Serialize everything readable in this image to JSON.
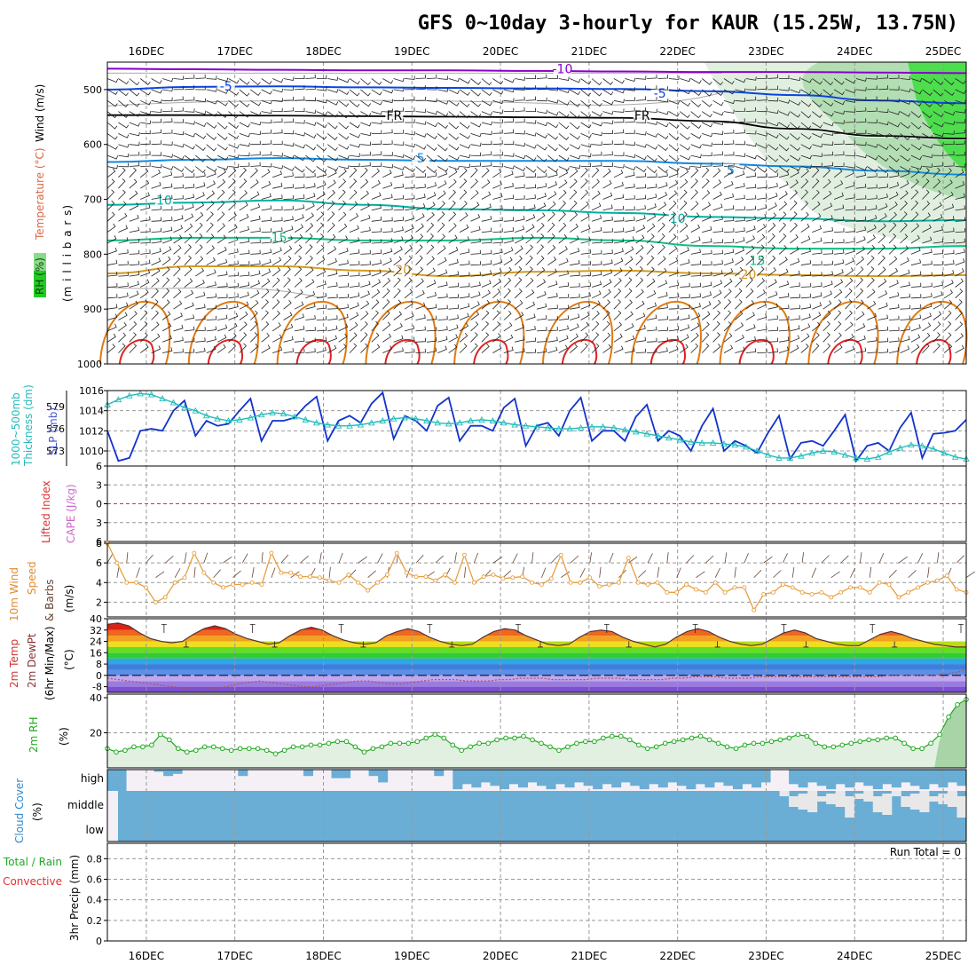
{
  "title": "GFS 0~10day 3-hourly for KAUR (15.25W, 13.75N)",
  "run_total_label": "Run Total = 0",
  "date_labels": [
    "16DEC",
    "17DEC",
    "18DEC",
    "19DEC",
    "20DEC",
    "21DEC",
    "22DEC",
    "23DEC",
    "24DEC",
    "25DEC"
  ],
  "colors": {
    "temp_cold": "#8800cc",
    "temp_5": "#0a44dd",
    "temp_fr": "#000000",
    "temp_m5": "#1188dd",
    "temp_10": "#00b0a0",
    "temp_15": "#11bb88",
    "temp_20": "#d49a20",
    "temp_25": "#e07a10",
    "temp_30": "#dd2222",
    "rh_light": "#dcecdc",
    "rh_mid": "#a8d8a8",
    "rh_dark": "#22dd22",
    "slp": "#1133cc",
    "thickness": "#22bbbb",
    "wind_speed": "#e8a040",
    "rh2m": "#22aa22",
    "cloud": "#6aaed6",
    "cloud_bg": "#f4f0f6"
  },
  "chart_data": [
    {
      "name": "upper",
      "type": "contour",
      "ylabel_parts": [
        "RH (%)",
        "Temperature (°C)",
        "Wind (m/s)"
      ],
      "ylabel2": "(m i l l i b a r s)",
      "y_ticks": [
        "500",
        "600",
        "700",
        "800",
        "900",
        "1000"
      ],
      "ylim": [
        450,
        1000
      ],
      "contours": [
        {
          "label": "-10",
          "color_key": "temp_cold",
          "levels": [
            462,
            463,
            464,
            465,
            465,
            466,
            467,
            468,
            468,
            469,
            470
          ]
        },
        {
          "label": "-5",
          "color_key": "temp_5",
          "levels": [
            500,
            495,
            494,
            496,
            497,
            498,
            499,
            503,
            510,
            520,
            525
          ]
        },
        {
          "label": "FR",
          "color_key": "temp_fr",
          "levels": [
            547,
            547,
            548,
            549,
            550,
            551,
            552,
            558,
            572,
            585,
            590
          ]
        },
        {
          "label": "5",
          "color_key": "temp_m5",
          "levels": [
            632,
            628,
            625,
            628,
            630,
            630,
            630,
            635,
            640,
            648,
            655
          ]
        },
        {
          "label": "10",
          "color_key": "temp_10",
          "levels": [
            710,
            706,
            702,
            710,
            718,
            720,
            725,
            732,
            735,
            740,
            738
          ]
        },
        {
          "label": "15",
          "color_key": "temp_15",
          "levels": [
            775,
            770,
            770,
            775,
            775,
            770,
            775,
            785,
            790,
            790,
            785
          ]
        },
        {
          "label": "20",
          "color_key": "temp_20",
          "levels": [
            835,
            822,
            822,
            830,
            840,
            832,
            830,
            835,
            838,
            840,
            838
          ]
        }
      ],
      "contour_labels": [
        {
          "text": "-10",
          "x": 20.7,
          "p": 465
        },
        {
          "text": "-5",
          "x": 16.9,
          "p": 497
        },
        {
          "text": "-5",
          "x": 21.8,
          "p": 510
        },
        {
          "text": "FR",
          "x": 18.8,
          "p": 550
        },
        {
          "text": "FR",
          "x": 21.6,
          "p": 550
        },
        {
          "text": "5",
          "x": 19.1,
          "p": 628
        },
        {
          "text": "5",
          "x": 22.6,
          "p": 650
        },
        {
          "text": "10",
          "x": 16.2,
          "p": 705
        },
        {
          "text": "10",
          "x": 22.0,
          "p": 738
        },
        {
          "text": "15",
          "x": 17.5,
          "p": 773
        },
        {
          "text": "15",
          "x": 22.9,
          "p": 815
        },
        {
          "text": "20",
          "x": 18.9,
          "p": 832
        },
        {
          "text": "20",
          "x": 22.8,
          "p": 840
        }
      ]
    },
    {
      "name": "slp_thickness",
      "type": "line",
      "ylabel_parts": [
        "1000~500mb",
        "Thickness (dm)",
        "SLP (mb)"
      ],
      "y_ticks_left": [
        "573",
        "576",
        "579"
      ],
      "y_ticks_right": [
        "1010",
        "1012",
        "1014",
        "1016"
      ],
      "ylim": [
        1008.5,
        1016
      ],
      "slp": [
        1012,
        1009,
        1009.3,
        1012,
        1012.2,
        1012,
        1014,
        1015,
        1011.5,
        1013,
        1012.5,
        1012.7,
        1014,
        1015.2,
        1011,
        1013,
        1013,
        1013.3,
        1014.5,
        1015.4,
        1011,
        1013,
        1013.5,
        1012.8,
        1014.7,
        1015.8,
        1011.2,
        1013.5,
        1013,
        1012,
        1014.5,
        1015.3,
        1011,
        1012.5,
        1012.5,
        1012,
        1014.3,
        1015.2,
        1010.5,
        1012.5,
        1012.8,
        1011.5,
        1014,
        1015.3,
        1011,
        1012,
        1012,
        1011,
        1013.4,
        1014.6,
        1011,
        1012,
        1011.5,
        1010,
        1012.5,
        1014.2,
        1010,
        1011,
        1010.5,
        1009.8,
        1011.8,
        1013.5,
        1009.2,
        1010.8,
        1011,
        1010.5,
        1012,
        1013.6,
        1009,
        1010.5,
        1010.8,
        1010,
        1012.3,
        1013.8,
        1009.3,
        1011.7,
        1011.8,
        1012,
        1013.1
      ],
      "thickness": [
        1014.6,
        1015.1,
        1015.5,
        1015.7,
        1015.6,
        1015.2,
        1014.8,
        1014.3,
        1014,
        1013.5,
        1013.2,
        1013,
        1013.1,
        1013.3,
        1013.6,
        1013.8,
        1013.7,
        1013.4,
        1013.1,
        1012.8,
        1012.6,
        1012.5,
        1012.5,
        1012.6,
        1012.8,
        1013,
        1013.2,
        1013.3,
        1013.2,
        1013,
        1012.8,
        1012.7,
        1012.8,
        1013,
        1013.1,
        1013,
        1012.8,
        1012.6,
        1012.5,
        1012.4,
        1012.3,
        1012.2,
        1012.2,
        1012.3,
        1012.4,
        1012.4,
        1012.3,
        1012.1,
        1011.9,
        1011.7,
        1011.5,
        1011.3,
        1011.1,
        1010.9,
        1010.8,
        1010.8,
        1010.7,
        1010.6,
        1010.4,
        1010,
        1009.6,
        1009.3,
        1009.3,
        1009.5,
        1009.8,
        1010,
        1009.9,
        1009.6,
        1009.3,
        1009.2,
        1009.4,
        1009.9,
        1010.3,
        1010.6,
        1010.5,
        1010.2,
        1009.8,
        1009.4,
        1009.2
      ]
    },
    {
      "name": "cape_li",
      "type": "line",
      "ylabel_parts": [
        "Lifted Index",
        "CAPE (J/kg)"
      ],
      "y_ticks": [
        "-6",
        "-3",
        "0",
        "3",
        "6"
      ],
      "ylim": [
        6,
        -6
      ],
      "lifted_index": []
    },
    {
      "name": "wind10m",
      "type": "line",
      "ylabel_parts": [
        "10m Wind",
        "Speed",
        "& Barbs",
        "(m/s)"
      ],
      "y_ticks": [
        "2",
        "4",
        "6",
        "8"
      ],
      "ylim": [
        0.5,
        8
      ],
      "speed": [
        8,
        6,
        4,
        4,
        3.5,
        2,
        2.5,
        4,
        4.5,
        7,
        5,
        4,
        3.5,
        3.8,
        3.8,
        4,
        3.8,
        7,
        5,
        5,
        4.6,
        4.6,
        4.5,
        4.2,
        4,
        4.8,
        4,
        3.2,
        4,
        4.8,
        7,
        5,
        4.6,
        4.6,
        4.2,
        4.8,
        4,
        6.8,
        4,
        4.6,
        4.8,
        4.4,
        4.5,
        4.6,
        4,
        3.8,
        4.4,
        6.8,
        4,
        4,
        4.5,
        3.6,
        3.8,
        4,
        6.5,
        4,
        3.8,
        4,
        3,
        3,
        3.8,
        3.3,
        3,
        4,
        3,
        3.5,
        3.5,
        1.2,
        2.8,
        3,
        3.8,
        3.5,
        3,
        2.8,
        3,
        2.5,
        3,
        3.5,
        3.5,
        3,
        4,
        3.8,
        2.5,
        3,
        3.5,
        4,
        4.2,
        4.7,
        3.3,
        3
      ]
    },
    {
      "name": "temp2m",
      "type": "area",
      "ylabel_parts": [
        "2m Temp",
        "2m DewPt",
        "(6hr Min/Max)",
        "(°C)"
      ],
      "y_ticks": [
        "-8",
        "0",
        "8",
        "16",
        "24",
        "32",
        "40"
      ],
      "ylim": [
        -12,
        40
      ],
      "temp": [
        36,
        37,
        35,
        30,
        26,
        24,
        23,
        24,
        29,
        33,
        35,
        33,
        29,
        26,
        24,
        22,
        23,
        28,
        32,
        34,
        32,
        28,
        25,
        23,
        22,
        23,
        28,
        31,
        33,
        31,
        27,
        24,
        22,
        21,
        22,
        27,
        31,
        33,
        32,
        28,
        25,
        22,
        21,
        22,
        27,
        31,
        32,
        31,
        27,
        24,
        22,
        20,
        22,
        27,
        31,
        33,
        31,
        27,
        24,
        22,
        21,
        22,
        26,
        30,
        32,
        30,
        26,
        24,
        22,
        21,
        21,
        25,
        29,
        31,
        29,
        26,
        24,
        22,
        21,
        20,
        20
      ],
      "dewpt": [
        -2,
        -3,
        -4,
        -5,
        -6,
        -7,
        -8,
        -9,
        -10,
        -10,
        -9,
        -8,
        -6,
        -5,
        -4,
        -5,
        -6,
        -7,
        -8,
        -8,
        -7,
        -6,
        -5,
        -4,
        -4,
        -5,
        -6,
        -6,
        -5,
        -4,
        -3,
        -3,
        -3,
        -4,
        -4,
        -4,
        -3,
        -3,
        -2,
        -2,
        -2,
        -3,
        -3,
        -3,
        -3,
        -2,
        -2,
        -2,
        -3,
        -3,
        -3,
        -3,
        -2,
        -2,
        -1,
        -1,
        -1,
        -2,
        -2,
        -2,
        -1,
        -1,
        -1,
        -1,
        -1,
        -1,
        -1,
        -1,
        -1,
        -1,
        -1,
        -1,
        0,
        0,
        0,
        0,
        0,
        1,
        2,
        4
      ]
    },
    {
      "name": "rh2m",
      "type": "area",
      "ylabel_parts": [
        "2m RH",
        "(%)"
      ],
      "y_ticks": [
        "20",
        "40"
      ],
      "ylim": [
        0,
        42
      ],
      "rh": [
        11,
        9,
        10,
        12,
        12,
        13,
        19,
        16,
        11,
        9,
        10,
        12,
        12,
        11,
        10,
        11,
        11,
        11,
        10,
        8,
        10,
        12,
        12,
        13,
        13,
        14,
        15,
        15,
        12,
        9,
        11,
        12,
        14,
        14,
        14,
        15,
        17,
        19,
        17,
        13,
        10,
        12,
        14,
        14,
        16,
        17,
        17,
        18,
        16,
        14,
        12,
        10,
        12,
        14,
        15,
        15,
        17,
        18,
        18,
        16,
        13,
        11,
        12,
        14,
        15,
        16,
        17,
        18,
        16,
        14,
        12,
        11,
        13,
        14,
        14,
        15,
        16,
        17,
        19,
        18,
        14,
        12,
        12,
        13,
        14,
        15,
        16,
        16,
        17,
        17,
        14,
        11,
        11,
        14,
        19,
        29,
        36,
        39
      ]
    },
    {
      "name": "cloud",
      "type": "bar",
      "ylabel_parts": [
        "Cloud Cover",
        "(%)"
      ],
      "levels": [
        "high",
        "middle",
        "low"
      ],
      "high": [
        0,
        80,
        0,
        0,
        0,
        10,
        30,
        20,
        0,
        0,
        0,
        0,
        0,
        0,
        0,
        0,
        0,
        0,
        0,
        0,
        0,
        0,
        0,
        0,
        40,
        40,
        0,
        0,
        0,
        60,
        0,
        0,
        0,
        0,
        0,
        0,
        0,
        0,
        0,
        0,
        0,
        0,
        0,
        0,
        0,
        0,
        0,
        0,
        0,
        0,
        0,
        0,
        0,
        0,
        0,
        0,
        0,
        0,
        0,
        0,
        0,
        0,
        0,
        0,
        0,
        0,
        0,
        0,
        0,
        0,
        0,
        0,
        0,
        0,
        0,
        0,
        0,
        0,
        0,
        0,
        0,
        0,
        0,
        0,
        0,
        0,
        0,
        0,
        0,
        0,
        0,
        0
      ],
      "high_note": "high cloud fills top band from 19DEC onward",
      "middle_gap_start": 23.15
    },
    {
      "name": "precip",
      "type": "bar",
      "ylabel_parts": [
        "Total / Rain",
        "Convective",
        "3hr Precip (mm)"
      ],
      "y_ticks": [
        "0",
        "0.2",
        "0.4",
        "0.6",
        "0.8"
      ],
      "ylim": [
        0,
        0.95
      ],
      "values": []
    }
  ]
}
